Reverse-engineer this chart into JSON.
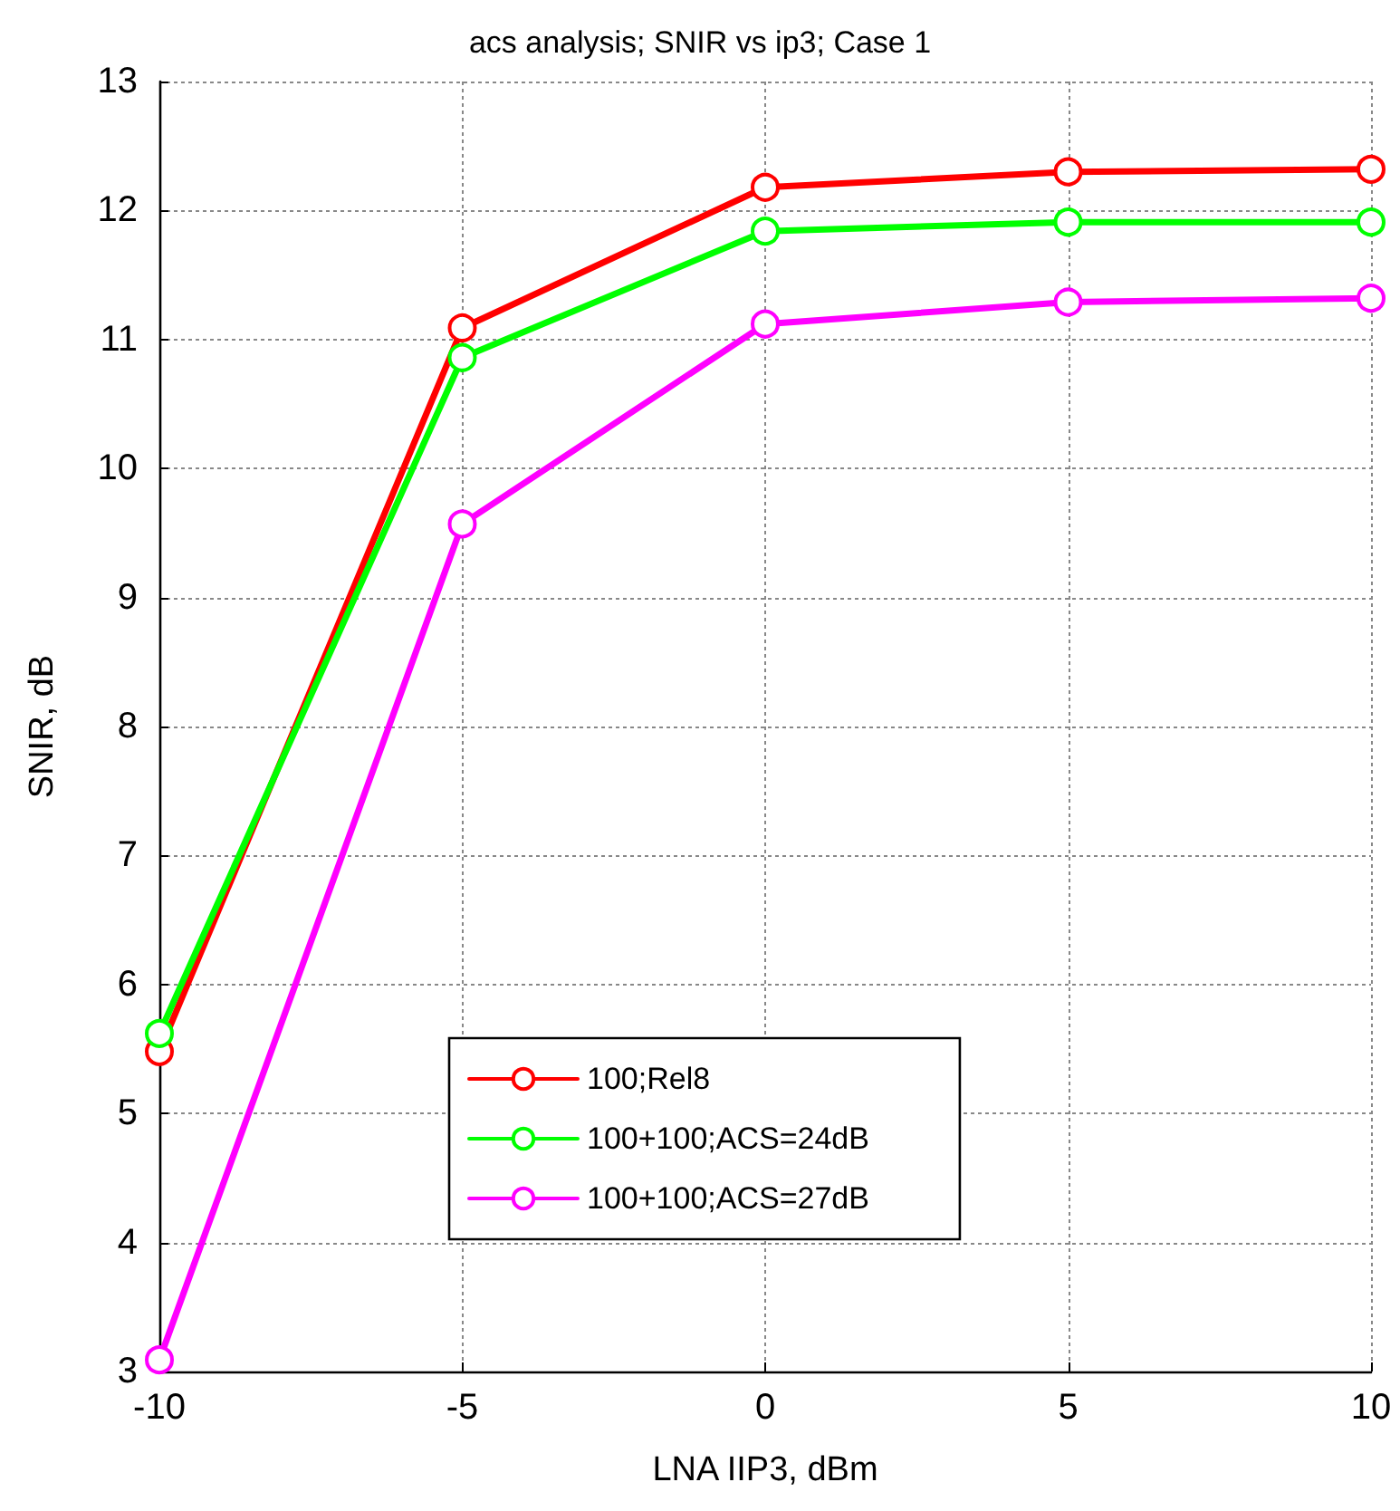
{
  "chart_data": {
    "type": "line",
    "title": "acs analysis; SNIR vs ip3; Case 1",
    "xlabel": "LNA IIP3, dBm",
    "ylabel": "SNIR, dB",
    "x": [
      -10,
      -5,
      0,
      5,
      10
    ],
    "series": [
      {
        "name": "100;Rel8",
        "color": "#ff0000",
        "values": [
          5.48,
          11.09,
          12.18,
          12.3,
          12.32
        ]
      },
      {
        "name": "100+100;ACS=24dB",
        "color": "#00ff00",
        "values": [
          5.62,
          10.86,
          11.84,
          11.91,
          11.91
        ]
      },
      {
        "name": "100+100;ACS=27dB",
        "color": "#ff00ff",
        "values": [
          3.09,
          9.57,
          11.12,
          11.29,
          11.32
        ]
      }
    ],
    "xlim": [
      -10,
      10
    ],
    "xticks": [
      -10,
      -5,
      0,
      5,
      10
    ],
    "ylim": [
      3,
      13
    ],
    "yticks": [
      3,
      4,
      5,
      6,
      7,
      8,
      9,
      10,
      11,
      12,
      13
    ],
    "grid": true,
    "legend": "bottom",
    "marker": "circle",
    "line_style": "solid"
  }
}
